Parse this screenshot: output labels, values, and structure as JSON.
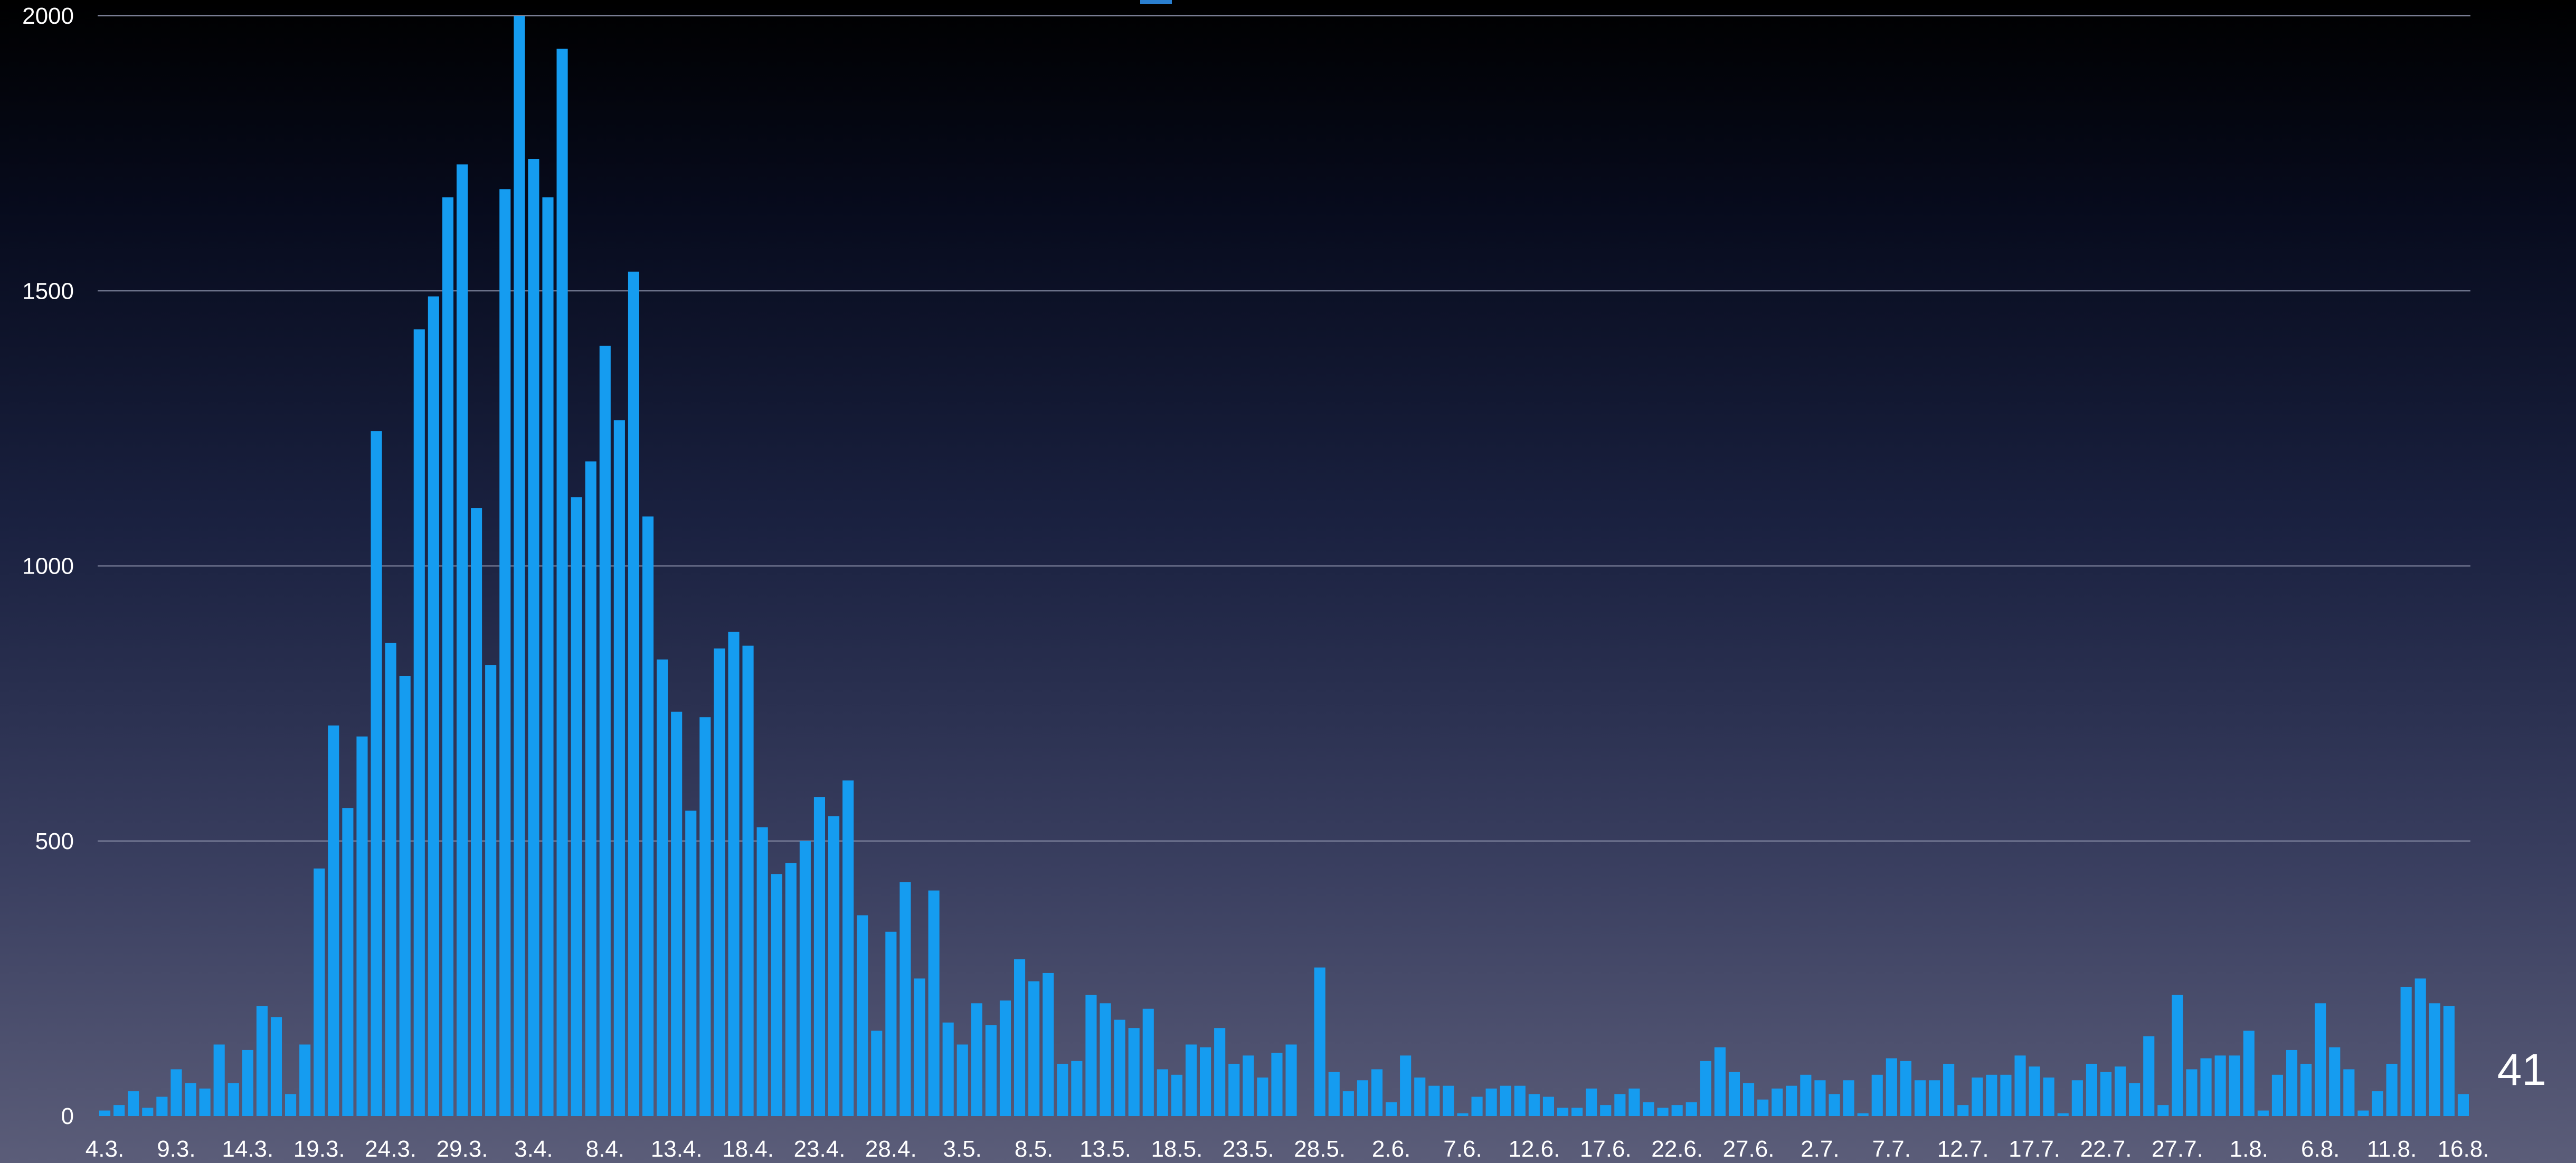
{
  "slide": {
    "page_number": "41"
  },
  "chart_data": {
    "type": "bar",
    "title": "",
    "xlabel": "",
    "ylabel": "",
    "ylim": [
      0,
      2000
    ],
    "yticks": [
      0,
      500,
      1000,
      1500,
      2000
    ],
    "grid": true,
    "legend": "top-center",
    "bar_color": "#159cf0",
    "grid_color": "#8a8fa8",
    "x_tick_labels": [
      "4.3.",
      "9.3.",
      "14.3.",
      "19.3.",
      "24.3.",
      "29.3.",
      "3.4.",
      "8.4.",
      "13.4.",
      "18.4.",
      "23.4.",
      "28.4.",
      "3.5.",
      "8.5.",
      "13.5.",
      "18.5.",
      "23.5.",
      "28.5.",
      "2.6.",
      "7.6.",
      "12.6.",
      "17.6.",
      "22.6.",
      "27.6.",
      "2.7.",
      "7.7.",
      "12.7.",
      "17.7.",
      "22.7.",
      "27.7.",
      "1.8.",
      "6.8.",
      "11.8.",
      "16.8."
    ],
    "values": [
      10,
      20,
      45,
      15,
      35,
      85,
      60,
      50,
      130,
      60,
      120,
      200,
      180,
      40,
      130,
      450,
      710,
      560,
      690,
      1245,
      860,
      800,
      1430,
      1490,
      1670,
      1730,
      1105,
      820,
      1685,
      2000,
      1740,
      1670,
      1940,
      1125,
      1190,
      1400,
      1265,
      1535,
      1090,
      830,
      735,
      555,
      725,
      850,
      880,
      855,
      525,
      440,
      460,
      500,
      580,
      545,
      610,
      365,
      155,
      335,
      425,
      250,
      410,
      170,
      130,
      205,
      165,
      210,
      285,
      245,
      260,
      95,
      100,
      220,
      205,
      175,
      160,
      195,
      85,
      75,
      130,
      125,
      160,
      95,
      110,
      70,
      115,
      130,
      0,
      270,
      80,
      45,
      65,
      85,
      25,
      110,
      70,
      55,
      55,
      5,
      35,
      50,
      55,
      55,
      40,
      35,
      15,
      15,
      50,
      20,
      40,
      50,
      25,
      15,
      20,
      25,
      100,
      125,
      80,
      60,
      30,
      50,
      55,
      75,
      65,
      40,
      65,
      5,
      75,
      105,
      100,
      65,
      65,
      95,
      20,
      70,
      75,
      75,
      110,
      90,
      70,
      5,
      65,
      95,
      80,
      90,
      60,
      145,
      20,
      220,
      85,
      105,
      110,
      110,
      155,
      10,
      75,
      120,
      95,
      205,
      125,
      85,
      10,
      45,
      95,
      235,
      250,
      205,
      200,
      40
    ]
  }
}
